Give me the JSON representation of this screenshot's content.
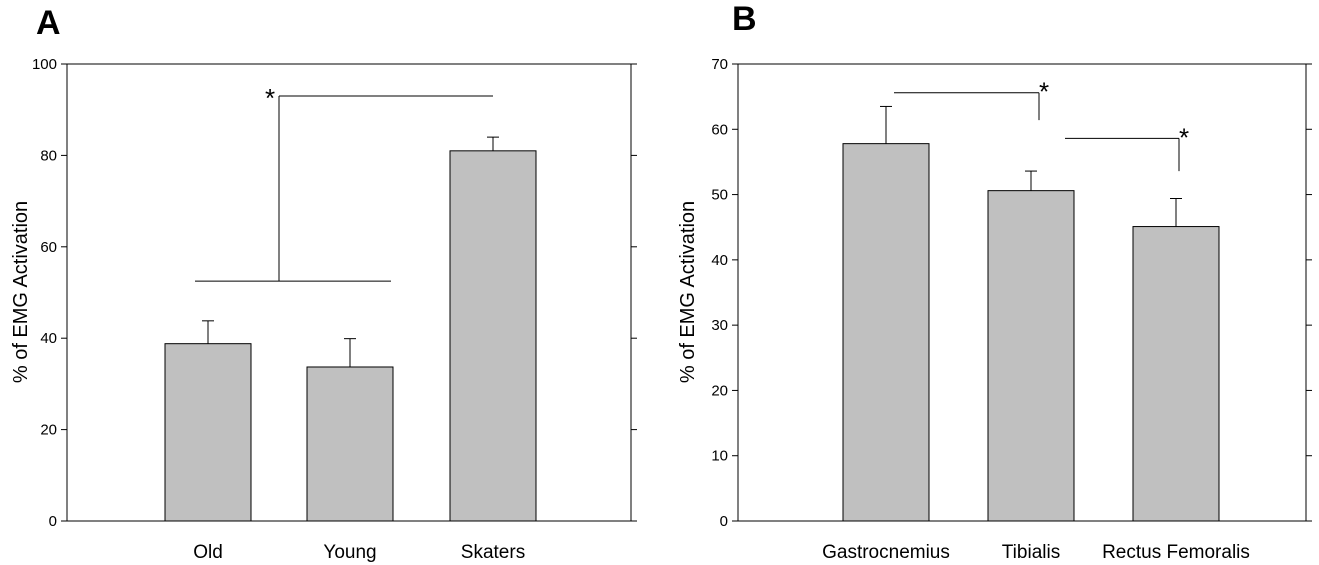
{
  "chart_data": [
    {
      "panel": "A",
      "type": "bar",
      "categories": [
        "Old",
        "Young",
        "Skaters"
      ],
      "values": [
        38.8,
        33.7,
        81.0
      ],
      "errors": [
        5.0,
        6.2,
        3.0
      ],
      "ylabel": "% of EMG Activation",
      "xlabel": "",
      "ylim": [
        0,
        100
      ],
      "yticks": [
        0,
        20,
        40,
        60,
        80,
        100
      ],
      "bar_color": "#c0c0c0",
      "grid": false,
      "significance": [
        {
          "label": "*",
          "from": [
            "Old",
            "Young"
          ],
          "to": "Skaters"
        }
      ]
    },
    {
      "panel": "B",
      "type": "bar",
      "categories": [
        "Gastrocnemius",
        "Tibialis",
        "Rectus Femoralis"
      ],
      "values": [
        57.8,
        50.6,
        45.1
      ],
      "errors": [
        5.7,
        3.0,
        4.3
      ],
      "ylabel": "% of EMG Activation",
      "xlabel": "",
      "ylim": [
        0,
        70
      ],
      "yticks": [
        0,
        10,
        20,
        30,
        40,
        50,
        60,
        70
      ],
      "bar_color": "#c0c0c0",
      "grid": false,
      "significance": [
        {
          "label": "*",
          "from": "Gastrocnemius",
          "to": "Tibialis"
        },
        {
          "label": "*",
          "from": "Tibialis",
          "to": "Rectus Femoralis"
        }
      ]
    }
  ]
}
